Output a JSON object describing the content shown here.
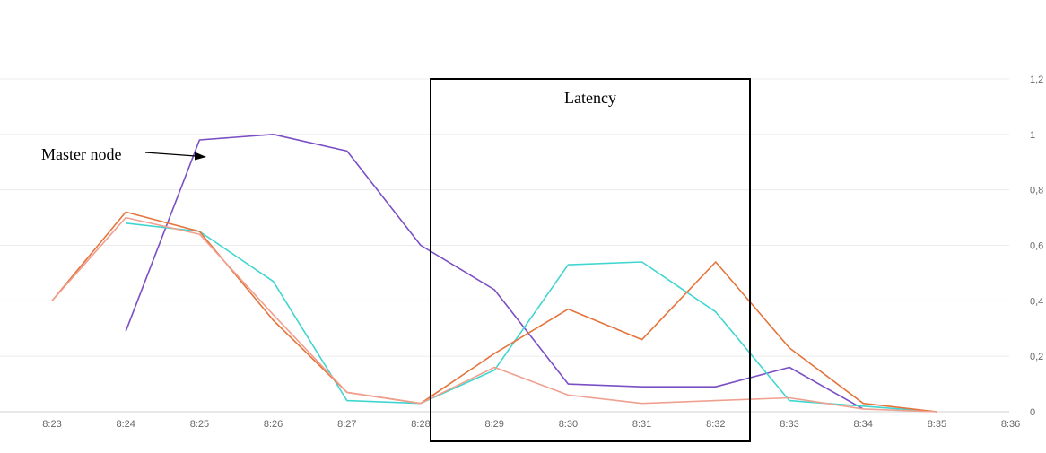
{
  "chart_data": {
    "type": "line",
    "x": [
      "8:23",
      "8:24",
      "8:25",
      "8:26",
      "8:27",
      "8:28",
      "8:29",
      "8:30",
      "8:31",
      "8:32",
      "8:33",
      "8:34",
      "8:35",
      "8:36"
    ],
    "ylim": [
      0,
      1.2
    ],
    "y_ticks": [
      "0",
      "0,2",
      "0,4",
      "0,6",
      "0,8",
      "1",
      "1,2"
    ],
    "grid": true,
    "y_axis_side": "right",
    "series": [
      {
        "color": "#7b4fc4",
        "values": [
          null,
          0.29,
          0.98,
          1.0,
          0.94,
          0.6,
          0.44,
          0.1,
          0.09,
          0.09,
          0.16,
          0.01,
          null,
          null
        ]
      },
      {
        "color": "#40d6d0",
        "values": [
          null,
          0.68,
          0.65,
          0.47,
          0.04,
          0.03,
          0.15,
          0.53,
          0.54,
          0.36,
          0.04,
          0.02,
          0.0,
          null
        ]
      },
      {
        "color": "#e5743c",
        "values": [
          0.4,
          0.72,
          0.65,
          0.33,
          0.07,
          0.03,
          0.21,
          0.37,
          0.26,
          0.54,
          0.23,
          0.03,
          0.0,
          null
        ]
      },
      {
        "color": "#f0a090",
        "values": [
          0.4,
          0.7,
          0.64,
          0.35,
          0.07,
          0.03,
          0.16,
          0.06,
          0.03,
          0.04,
          0.05,
          0.01,
          0.0,
          null
        ]
      }
    ],
    "annotations": {
      "arrow_label": "Master node",
      "box_label": "Latency"
    }
  }
}
